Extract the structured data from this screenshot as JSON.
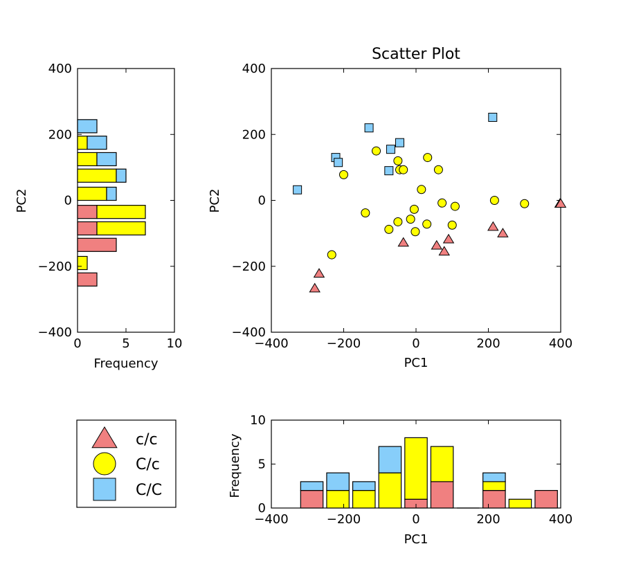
{
  "colors": {
    "cc": "#f08080",
    "Cc": "#ffff00",
    "CC": "#87cefa"
  },
  "chart_data": [
    {
      "type": "scatter",
      "title": "Scatter Plot",
      "xlabel": "PC1",
      "ylabel": "PC2",
      "xlim": [
        -400,
        400
      ],
      "ylim": [
        -400,
        400
      ],
      "xticks": [
        -400,
        -200,
        0,
        200,
        400
      ],
      "yticks": [
        400,
        200,
        0,
        -200,
        -400
      ],
      "xtick_labels": [
        "−400",
        "−200",
        "0",
        "200",
        "400"
      ],
      "ytick_labels": [
        "400",
        "200",
        "0",
        "−200",
        "−400"
      ],
      "series": [
        {
          "name": "c/c",
          "marker": "triangle",
          "color": "#f08080",
          "x": [
            -35,
            57,
            78,
            90,
            213,
            240,
            -268,
            -280,
            398,
            400
          ],
          "y": [
            -128,
            -137,
            -155,
            -118,
            -80,
            -100,
            -222,
            -267,
            -10,
            -10
          ]
        },
        {
          "name": "C/c",
          "marker": "circle",
          "color": "#ffff00",
          "x": [
            -110,
            -200,
            -50,
            -45,
            -35,
            32,
            62,
            15,
            -140,
            -233,
            -75,
            -50,
            -15,
            30,
            -2,
            72,
            108,
            100,
            217,
            300,
            -5
          ],
          "y": [
            150,
            78,
            120,
            93,
            93,
            130,
            93,
            33,
            -38,
            -165,
            -88,
            -65,
            -57,
            -72,
            -95,
            -8,
            -18,
            -75,
            0,
            -10,
            -27
          ]
        },
        {
          "name": "C/C",
          "marker": "square",
          "color": "#87cefa",
          "x": [
            -130,
            -222,
            -215,
            -70,
            -45,
            -75,
            -328,
            212
          ],
          "y": [
            220,
            130,
            115,
            155,
            175,
            90,
            32,
            252
          ]
        }
      ]
    },
    {
      "type": "bar",
      "orientation": "horizontal",
      "stacked": true,
      "xlabel": "Frequency",
      "ylabel": "PC2",
      "xlim": [
        0,
        10
      ],
      "ylim": [
        -400,
        400
      ],
      "xticks": [
        0,
        5,
        10
      ],
      "yticks": [
        400,
        200,
        0,
        -200,
        -400
      ],
      "xtick_labels": [
        "0",
        "5",
        "10"
      ],
      "ytick_labels": [
        "400",
        "200",
        "0",
        "−200",
        "−400"
      ],
      "bin_centers": [
        -240,
        -190,
        -135,
        -85,
        -35,
        20,
        75,
        125,
        175,
        225
      ],
      "bin_height": 40,
      "series": [
        {
          "name": "c/c",
          "values": [
            2,
            0,
            4,
            2,
            2,
            0,
            0,
            0,
            0,
            0
          ]
        },
        {
          "name": "C/c",
          "values": [
            0,
            1,
            0,
            5,
            5,
            3,
            4,
            2,
            1,
            0
          ]
        },
        {
          "name": "C/C",
          "values": [
            0,
            0,
            0,
            0,
            0,
            1,
            1,
            2,
            2,
            2
          ]
        }
      ]
    },
    {
      "type": "bar",
      "stacked": true,
      "xlabel": "PC1",
      "ylabel": "Frequency",
      "xlim": [
        -400,
        400
      ],
      "ylim": [
        0,
        10
      ],
      "xticks": [
        -400,
        -200,
        0,
        200,
        400
      ],
      "yticks": [
        10,
        5,
        0
      ],
      "xtick_labels": [
        "−400",
        "−200",
        "0",
        "200",
        "400"
      ],
      "ytick_labels": [
        "10",
        "5",
        "0"
      ],
      "bin_centers": [
        -288,
        -216,
        -144,
        -72,
        0,
        72,
        144,
        216,
        288,
        360
      ],
      "bin_width": 62,
      "series": [
        {
          "name": "c/c",
          "values": [
            2,
            0,
            0,
            0,
            1,
            3,
            0,
            2,
            0,
            2
          ]
        },
        {
          "name": "C/c",
          "values": [
            0,
            2,
            2,
            4,
            7,
            4,
            0,
            1,
            1,
            0
          ]
        },
        {
          "name": "C/C",
          "values": [
            1,
            2,
            1,
            3,
            0,
            0,
            0,
            1,
            0,
            0
          ]
        }
      ]
    }
  ],
  "legend": {
    "items": [
      {
        "label": "c/c",
        "marker": "triangle",
        "color": "#f08080"
      },
      {
        "label": "C/c",
        "marker": "circle",
        "color": "#ffff00"
      },
      {
        "label": "C/C",
        "marker": "square",
        "color": "#87cefa"
      }
    ]
  }
}
